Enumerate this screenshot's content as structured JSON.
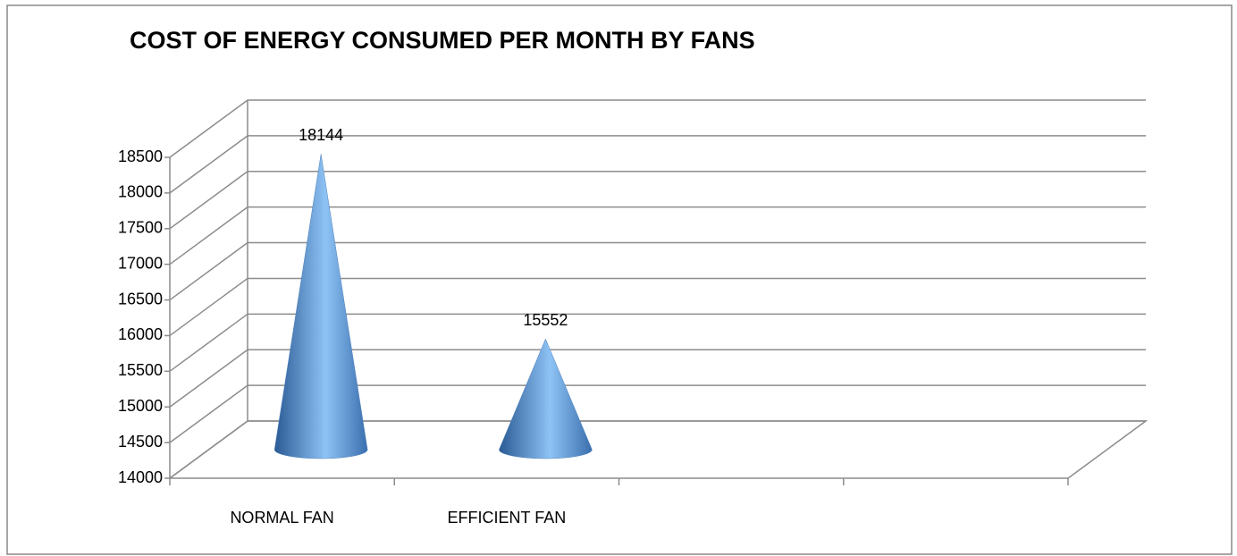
{
  "chart_data": {
    "type": "cone",
    "title": "COST OF ENERGY CONSUMED PER MONTH BY FANS",
    "categories": [
      "NORMAL FAN",
      "EFFICIENT FAN",
      null,
      null
    ],
    "values": [
      18144,
      15552,
      null,
      null
    ],
    "color": "#4f81bd",
    "ylim": [
      14000,
      18500
    ],
    "yticks": [
      14000,
      14500,
      15000,
      15500,
      16000,
      16500,
      17000,
      17500,
      18000,
      18500
    ],
    "grid": true
  }
}
